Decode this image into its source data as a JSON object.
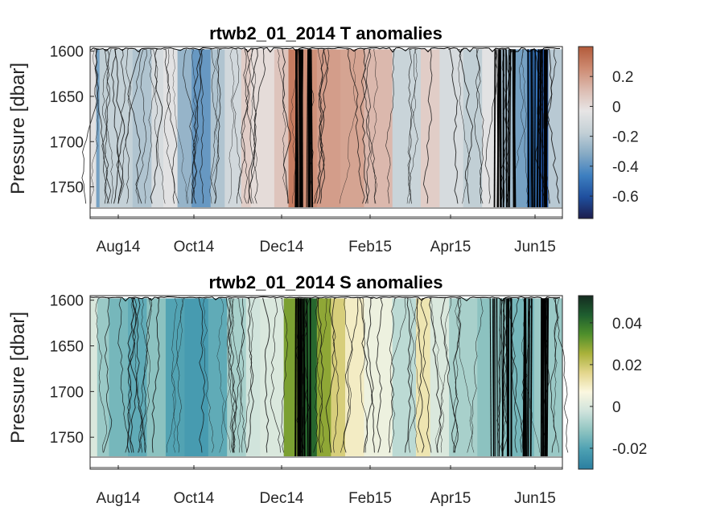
{
  "chart_data": [
    {
      "type": "heatmap",
      "title": "rtwb2_01_2014 T anomalies",
      "ylabel": "Pressure [dbar]",
      "xlabel": "",
      "x_ticks": [
        "Aug14",
        "Oct14",
        "Dec14",
        "Feb15",
        "Apr15",
        "Jun15"
      ],
      "y_ticks": [
        1600,
        1650,
        1700,
        1750
      ],
      "ylim": [
        1595,
        1785
      ],
      "y_reversed": true,
      "colorbar": {
        "ticks": [
          0.2,
          0,
          -0.2,
          -0.4,
          -0.6
        ],
        "range": [
          -0.75,
          0.4
        ],
        "colormap": [
          "#1c1d4d",
          "#1f4f9e",
          "#3d7fc0",
          "#86aac4",
          "#c3d0d6",
          "#e7e5e5",
          "#dcbbb0",
          "#cd8a71",
          "#b25a3a"
        ]
      },
      "time_segments": [
        {
          "t0": 0.0,
          "t1": 0.013,
          "value": -0.05
        },
        {
          "t0": 0.013,
          "t1": 0.02,
          "value": -0.35
        },
        {
          "t0": 0.02,
          "t1": 0.04,
          "value": -0.18
        },
        {
          "t0": 0.04,
          "t1": 0.09,
          "value": -0.17
        },
        {
          "t0": 0.09,
          "t1": 0.13,
          "value": -0.22
        },
        {
          "t0": 0.13,
          "t1": 0.155,
          "value": -0.1
        },
        {
          "t0": 0.155,
          "t1": 0.185,
          "value": -0.05
        },
        {
          "t0": 0.185,
          "t1": 0.215,
          "value": -0.28
        },
        {
          "t0": 0.215,
          "t1": 0.255,
          "value": -0.38
        },
        {
          "t0": 0.255,
          "t1": 0.285,
          "value": -0.22
        },
        {
          "t0": 0.285,
          "t1": 0.32,
          "value": -0.12
        },
        {
          "t0": 0.32,
          "t1": 0.34,
          "value": 0.05
        },
        {
          "t0": 0.34,
          "t1": 0.39,
          "value": 0.0
        },
        {
          "t0": 0.39,
          "t1": 0.42,
          "value": 0.08
        },
        {
          "t0": 0.42,
          "t1": 0.44,
          "value": 0.3
        },
        {
          "t0": 0.44,
          "t1": 0.48,
          "value": 0.24
        },
        {
          "t0": 0.48,
          "t1": 0.53,
          "value": 0.2
        },
        {
          "t0": 0.53,
          "t1": 0.58,
          "value": 0.18
        },
        {
          "t0": 0.58,
          "t1": 0.64,
          "value": 0.12
        },
        {
          "t0": 0.64,
          "t1": 0.7,
          "value": -0.15
        },
        {
          "t0": 0.7,
          "t1": 0.74,
          "value": 0.05
        },
        {
          "t0": 0.74,
          "t1": 0.79,
          "value": -0.1
        },
        {
          "t0": 0.79,
          "t1": 0.83,
          "value": -0.18
        },
        {
          "t0": 0.83,
          "t1": 0.87,
          "value": -0.05
        },
        {
          "t0": 0.87,
          "t1": 0.9,
          "value": -0.25
        },
        {
          "t0": 0.9,
          "t1": 0.925,
          "value": -0.35
        },
        {
          "t0": 0.925,
          "t1": 0.95,
          "value": -0.5
        },
        {
          "t0": 0.95,
          "t1": 0.97,
          "value": -0.6
        },
        {
          "t0": 0.97,
          "t1": 1.0,
          "value": -0.2
        }
      ]
    },
    {
      "type": "heatmap",
      "title": "rtwb2_01_2014 S anomalies",
      "ylabel": "Pressure [dbar]",
      "xlabel": "",
      "x_ticks": [
        "Aug14",
        "Oct14",
        "Dec14",
        "Feb15",
        "Apr15",
        "Jun15"
      ],
      "y_ticks": [
        1600,
        1650,
        1700,
        1750
      ],
      "ylim": [
        1595,
        1785
      ],
      "y_reversed": true,
      "colorbar": {
        "ticks": [
          0.04,
          0.02,
          0,
          -0.02
        ],
        "range": [
          -0.03,
          0.053
        ],
        "colormap": [
          "#2a7ea0",
          "#4ca0b2",
          "#8fc4c1",
          "#cfe3dc",
          "#fbf7e0",
          "#e3d68c",
          "#a9b13a",
          "#4e8f2b",
          "#1e5e2f",
          "#142b20"
        ]
      },
      "time_segments": [
        {
          "t0": 0.0,
          "t1": 0.015,
          "value": 0.0
        },
        {
          "t0": 0.015,
          "t1": 0.04,
          "value": -0.01
        },
        {
          "t0": 0.04,
          "t1": 0.08,
          "value": -0.015
        },
        {
          "t0": 0.08,
          "t1": 0.12,
          "value": -0.018
        },
        {
          "t0": 0.12,
          "t1": 0.16,
          "value": -0.012
        },
        {
          "t0": 0.16,
          "t1": 0.2,
          "value": -0.02
        },
        {
          "t0": 0.2,
          "t1": 0.25,
          "value": -0.022
        },
        {
          "t0": 0.25,
          "t1": 0.29,
          "value": -0.018
        },
        {
          "t0": 0.29,
          "t1": 0.33,
          "value": -0.008
        },
        {
          "t0": 0.33,
          "t1": 0.36,
          "value": -0.002
        },
        {
          "t0": 0.36,
          "t1": 0.41,
          "value": 0.0
        },
        {
          "t0": 0.41,
          "t1": 0.44,
          "value": 0.03
        },
        {
          "t0": 0.44,
          "t1": 0.48,
          "value": 0.042
        },
        {
          "t0": 0.48,
          "t1": 0.51,
          "value": 0.028
        },
        {
          "t0": 0.51,
          "t1": 0.54,
          "value": 0.018
        },
        {
          "t0": 0.54,
          "t1": 0.58,
          "value": 0.01
        },
        {
          "t0": 0.58,
          "t1": 0.64,
          "value": 0.004
        },
        {
          "t0": 0.64,
          "t1": 0.69,
          "value": -0.005
        },
        {
          "t0": 0.69,
          "t1": 0.72,
          "value": 0.012
        },
        {
          "t0": 0.72,
          "t1": 0.76,
          "value": 0.0
        },
        {
          "t0": 0.76,
          "t1": 0.82,
          "value": -0.008
        },
        {
          "t0": 0.82,
          "t1": 0.88,
          "value": -0.012
        },
        {
          "t0": 0.88,
          "t1": 0.94,
          "value": -0.015
        },
        {
          "t0": 0.94,
          "t1": 1.0,
          "value": -0.01
        }
      ]
    }
  ]
}
